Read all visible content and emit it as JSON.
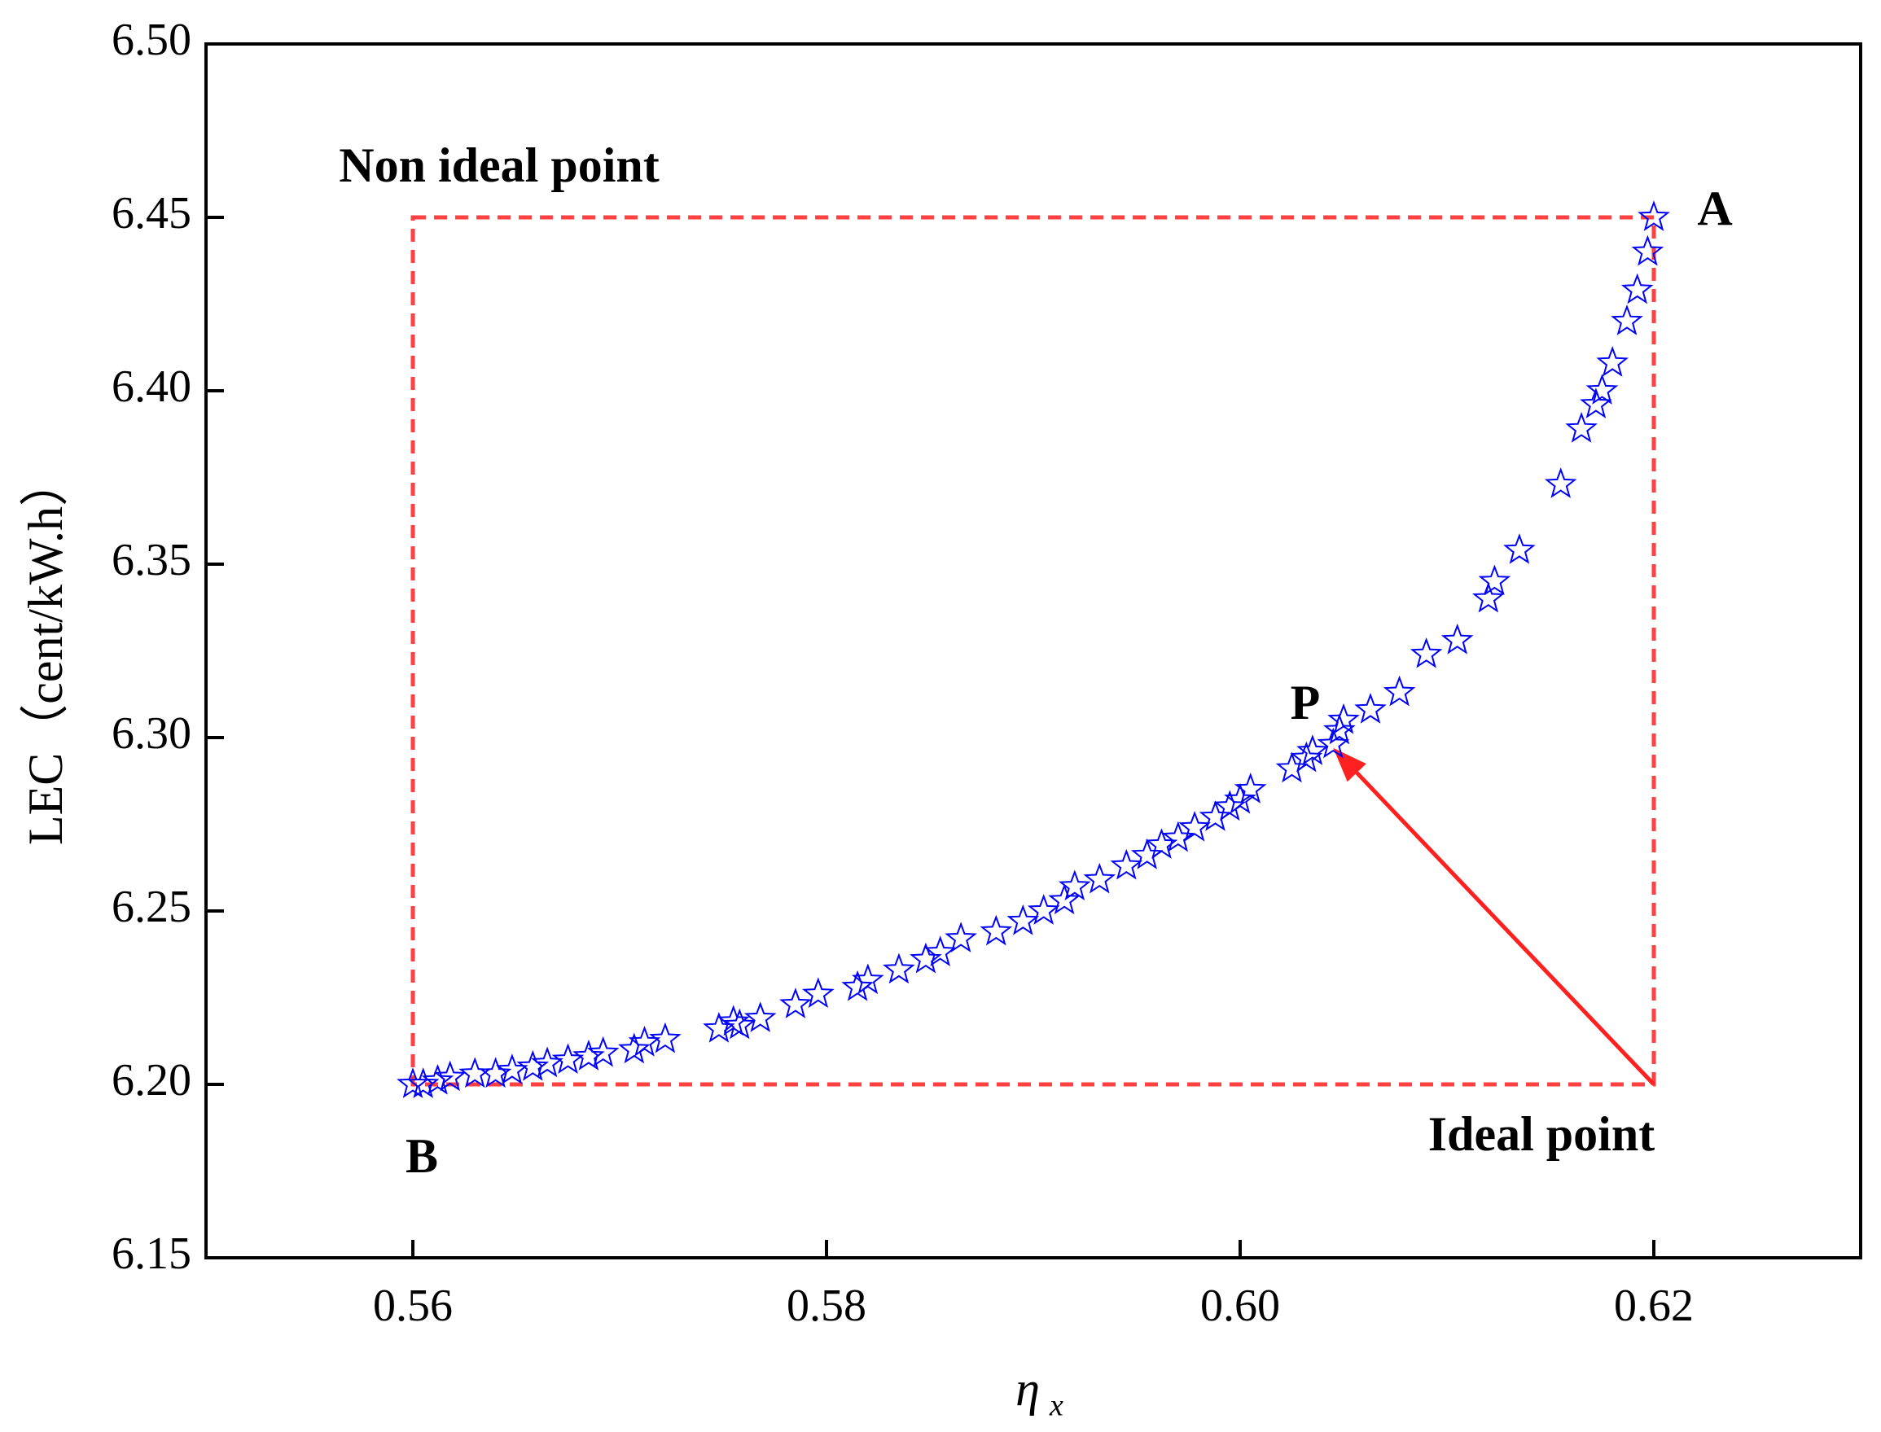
{
  "chart_data": {
    "type": "scatter",
    "xlabel": "η",
    "xlabel_subscript": "x",
    "ylabel": "LEC（cent/kW.h）",
    "marker": "star",
    "color": "#0000ff",
    "x": [
      0.56,
      0.5605,
      0.5612,
      0.5618,
      0.563,
      0.564,
      0.5648,
      0.5658,
      0.5665,
      0.5675,
      0.5685,
      0.5692,
      0.5707,
      0.5712,
      0.5722,
      0.5748,
      0.5755,
      0.5758,
      0.5768,
      0.5785,
      0.5796,
      0.5815,
      0.582,
      0.5835,
      0.5848,
      0.5855,
      0.5865,
      0.5882,
      0.5895,
      0.5905,
      0.5915,
      0.592,
      0.5932,
      0.5945,
      0.5955,
      0.5962,
      0.597,
      0.5978,
      0.5988,
      0.5995,
      0.6,
      0.6005,
      0.6025,
      0.6032,
      0.6035,
      0.6045,
      0.6048,
      0.605,
      0.6063,
      0.6077,
      0.609,
      0.6105,
      0.612,
      0.6123,
      0.6135,
      0.6155,
      0.6165,
      0.6172,
      0.6175,
      0.618,
      0.6187,
      0.6192,
      0.6197,
      0.62
    ],
    "values": [
      6.2,
      6.2,
      6.201,
      6.202,
      6.203,
      6.203,
      6.204,
      6.205,
      6.206,
      6.207,
      6.208,
      6.209,
      6.21,
      6.212,
      6.213,
      6.216,
      6.218,
      6.217,
      6.219,
      6.223,
      6.226,
      6.228,
      6.23,
      6.233,
      6.236,
      6.238,
      6.242,
      6.244,
      6.247,
      6.25,
      6.253,
      6.257,
      6.259,
      6.263,
      6.266,
      6.269,
      6.271,
      6.274,
      6.277,
      6.28,
      6.282,
      6.285,
      6.291,
      6.294,
      6.296,
      6.298,
      6.302,
      6.305,
      6.308,
      6.313,
      6.324,
      6.328,
      6.34,
      6.345,
      6.354,
      6.373,
      6.389,
      6.396,
      6.4,
      6.408,
      6.42,
      6.429,
      6.44,
      6.45
    ],
    "xlim": [
      0.55,
      0.63
    ],
    "xticks": [
      0.56,
      0.58,
      {
        "value": 0.6,
        "label": "0.60"
      },
      0.62
    ],
    "ylim": [
      6.15,
      6.5
    ],
    "yticks": [
      6.15,
      {
        "value": 6.2,
        "label": "6.20"
      },
      6.25,
      {
        "value": 6.3,
        "label": "6.30"
      },
      6.35,
      {
        "value": 6.4,
        "label": "6.40"
      },
      6.45,
      {
        "value": 6.5,
        "label": "6.50"
      }
    ],
    "annotation_color": "#ff2020",
    "box": {
      "x": [
        0.56,
        0.62
      ],
      "y": [
        6.2,
        6.45
      ]
    },
    "arrow": {
      "from": [
        0.62,
        6.2
      ],
      "to": [
        0.6045,
        6.297
      ]
    },
    "annotations": {
      "non_ideal": "Non ideal point",
      "a": "A",
      "b": "B",
      "p": "P",
      "ideal": "Ideal point"
    }
  }
}
